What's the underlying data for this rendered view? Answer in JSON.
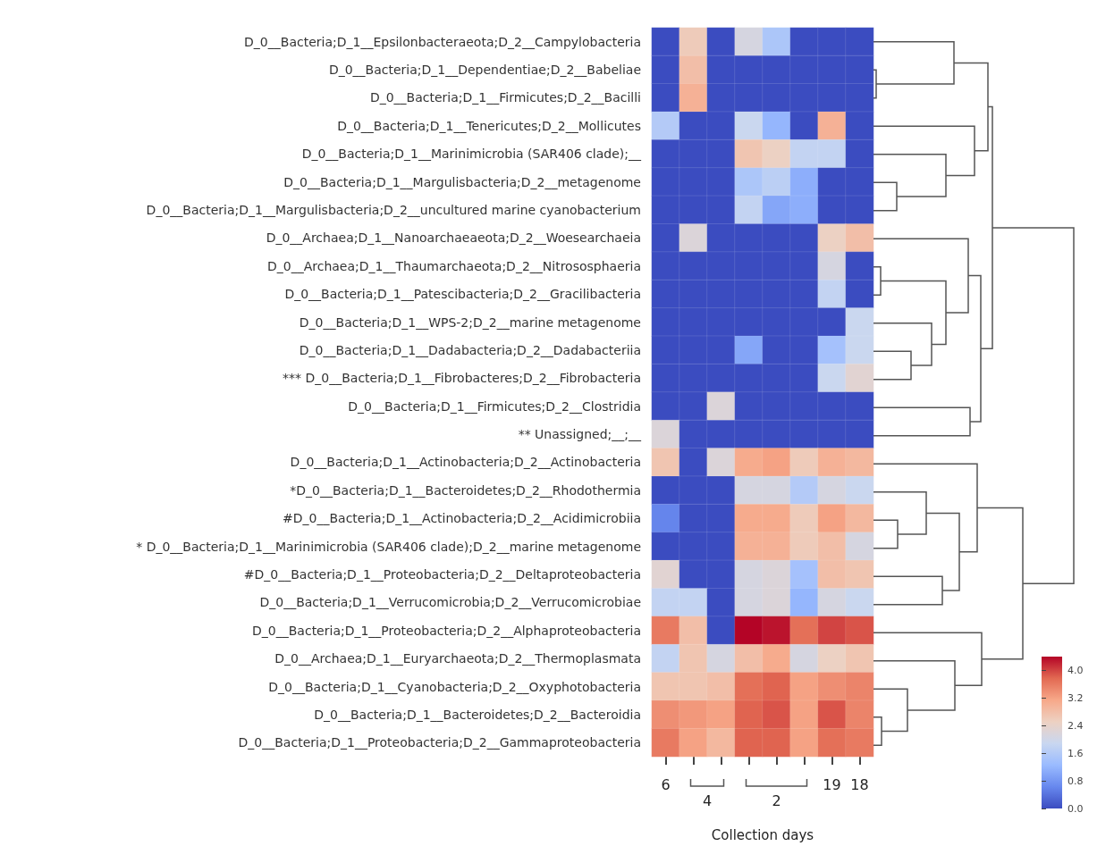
{
  "chart_data": {
    "type": "heatmap",
    "xlabel": "Collection days",
    "categories": [
      "6",
      null,
      null,
      null,
      null,
      null,
      "19",
      "18"
    ],
    "annotations": [
      "4",
      "2"
    ],
    "y_categories": [
      "D_0__Bacteria;D_1__Epsilonbacteraeota;D_2__Campylobacteria",
      "D_0__Bacteria;D_1__Dependentiae;D_2__Babeliae",
      "D_0__Bacteria;D_1__Firmicutes;D_2__Bacilli",
      "D_0__Bacteria;D_1__Tenericutes;D_2__Mollicutes",
      "D_0__Bacteria;D_1__Marinimicrobia (SAR406 clade);__",
      "D_0__Bacteria;D_1__Margulisbacteria;D_2__metagenome",
      "D_0__Bacteria;D_1__Margulisbacteria;D_2__uncultured marine cyanobacterium",
      "D_0__Archaea;D_1__Nanoarchaeaeota;D_2__Woesearchaeia",
      "D_0__Archaea;D_1__Thaumarchaeota;D_2__Nitrososphaeria",
      "D_0__Bacteria;D_1__Patescibacteria;D_2__Gracilibacteria",
      "D_0__Bacteria;D_1__WPS-2;D_2__marine metagenome",
      "D_0__Bacteria;D_1__Dadabacteria;D_2__Dadabacteriia",
      "*** D_0__Bacteria;D_1__Fibrobacteres;D_2__Fibrobacteria",
      "D_0__Bacteria;D_1__Firmicutes;D_2__Clostridia",
      "** Unassigned;__;__",
      "D_0__Bacteria;D_1__Actinobacteria;D_2__Actinobacteria",
      "*D_0__Bacteria;D_1__Bacteroidetes;D_2__Rhodothermia",
      "#D_0__Bacteria;D_1__Actinobacteria;D_2__Acidimicrobiia",
      "* D_0__Bacteria;D_1__Marinimicrobia (SAR406 clade);D_2__marine metagenome",
      "#D_0__Bacteria;D_1__Proteobacteria;D_2__Deltaproteobacteria",
      "D_0__Bacteria;D_1__Verrucomicrobia;D_2__Verrucomicrobiae",
      "D_0__Bacteria;D_1__Proteobacteria;D_2__Alphaproteobacteria",
      "D_0__Archaea;D_1__Euryarchaeota;D_2__Thermoplasmata",
      "D_0__Bacteria;D_1__Cyanobacteria;D_2__Oxyphotobacteria",
      "D_0__Bacteria;D_1__Bacteroidetes;D_2__Bacteroidia",
      "D_0__Bacteria;D_1__Proteobacteria;D_2__Gammaproteobacteria"
    ],
    "cells": [
      [
        0,
        2.6,
        0,
        2.1,
        1.5,
        0,
        0,
        0
      ],
      [
        0,
        2.8,
        0,
        0,
        0,
        0,
        0,
        0
      ],
      [
        0,
        3.0,
        0,
        0,
        0,
        0,
        0,
        0
      ],
      [
        1.6,
        0,
        0,
        1.9,
        1.2,
        0,
        3.0,
        0
      ],
      [
        0,
        0,
        0,
        2.7,
        2.5,
        1.8,
        1.8,
        0
      ],
      [
        0,
        0,
        0,
        1.5,
        1.7,
        1.1,
        0,
        0
      ],
      [
        0,
        0,
        0,
        1.8,
        1.0,
        1.1,
        0,
        0
      ],
      [
        0,
        2.2,
        0,
        0,
        0,
        0,
        2.5,
        2.8
      ],
      [
        0,
        0,
        0,
        0,
        0,
        0,
        2.1,
        0
      ],
      [
        0,
        0,
        0,
        0,
        0,
        0,
        1.8,
        0
      ],
      [
        0,
        0,
        0,
        0,
        0,
        0,
        0,
        1.9
      ],
      [
        0,
        0,
        0,
        1.0,
        0,
        0,
        1.4,
        1.9
      ],
      [
        0,
        0,
        0,
        0,
        0,
        0,
        1.9,
        2.3
      ],
      [
        0,
        0,
        2.2,
        0,
        0,
        0,
        0,
        0
      ],
      [
        2.2,
        0,
        0,
        0,
        0,
        0,
        0,
        0
      ],
      [
        2.7,
        0,
        2.2,
        3.1,
        3.2,
        2.6,
        3.0,
        2.9
      ],
      [
        0,
        0,
        0,
        2.1,
        2.1,
        1.6,
        2.1,
        1.9
      ],
      [
        0.6,
        0,
        0,
        3.1,
        3.1,
        2.6,
        3.2,
        2.9
      ],
      [
        0,
        0,
        0,
        3.0,
        3.0,
        2.6,
        2.8,
        2.1
      ],
      [
        2.3,
        0,
        0,
        2.1,
        2.2,
        1.4,
        2.8,
        2.7
      ],
      [
        1.8,
        1.8,
        0,
        2.1,
        2.2,
        1.2,
        2.1,
        1.9
      ],
      [
        3.6,
        2.8,
        0,
        4.4,
        4.3,
        3.7,
        4.0,
        3.9
      ],
      [
        1.8,
        2.7,
        2.1,
        2.8,
        3.1,
        2.1,
        2.5,
        2.7
      ],
      [
        2.7,
        2.7,
        2.8,
        3.7,
        3.8,
        3.2,
        3.4,
        3.5
      ],
      [
        3.4,
        3.3,
        3.2,
        3.8,
        3.9,
        3.2,
        3.9,
        3.5
      ],
      [
        3.6,
        3.2,
        2.9,
        3.8,
        3.8,
        3.2,
        3.7,
        3.6
      ]
    ],
    "clim": [
      0,
      4.4
    ],
    "cticks": [
      {
        "value": 0,
        "label": "0.0"
      },
      {
        "value": 0.8,
        "label": "0.8"
      },
      {
        "value": 1.6,
        "label": "1.6"
      },
      {
        "value": 2.4,
        "label": "2.4"
      },
      {
        "value": 3.2,
        "label": "3.2"
      },
      {
        "value": 4.0,
        "label": "4.0"
      }
    ]
  }
}
